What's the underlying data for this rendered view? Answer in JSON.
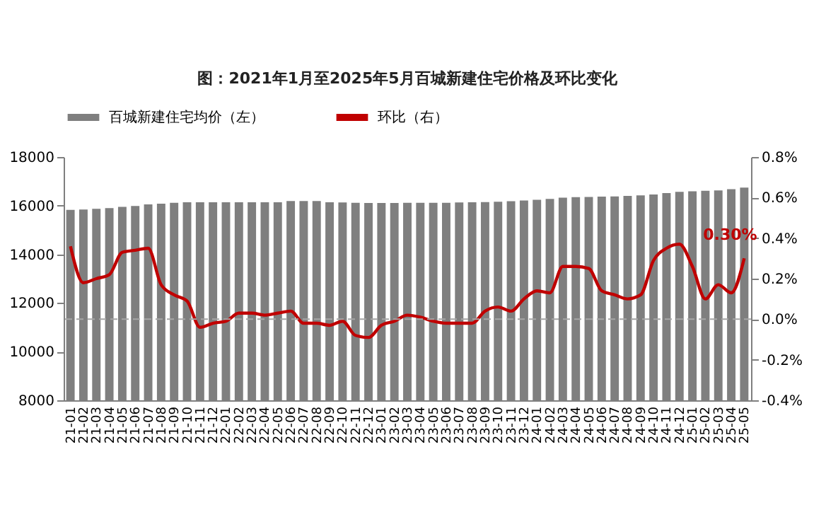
{
  "chart_data": {
    "type": "bar",
    "title": "图：2021年1月至2025年5月百城新建住宅价格及环比变化",
    "categories": [
      "21-01",
      "21-02",
      "21-03",
      "21-04",
      "21-05",
      "21-06",
      "21-07",
      "21-08",
      "21-09",
      "21-10",
      "21-11",
      "21-12",
      "22-01",
      "22-02",
      "22-03",
      "22-04",
      "22-05",
      "22-06",
      "22-07",
      "22-08",
      "22-09",
      "22-10",
      "22-11",
      "22-12",
      "23-01",
      "23-02",
      "23-03",
      "23-04",
      "23-05",
      "23-06",
      "23-07",
      "23-08",
      "23-09",
      "23-10",
      "23-11",
      "23-12",
      "24-01",
      "24-02",
      "24-03",
      "24-04",
      "24-05",
      "24-06",
      "24-07",
      "24-08",
      "24-09",
      "24-10",
      "24-11",
      "24-12",
      "25-01",
      "25-02",
      "25-03",
      "25-04",
      "25-05"
    ],
    "series": [
      {
        "name": "百城新建住宅均价（左）",
        "color": "#7f7f7f",
        "values": [
          15830,
          15840,
          15870,
          15900,
          15950,
          15990,
          16050,
          16080,
          16120,
          16140,
          16140,
          16140,
          16140,
          16140,
          16140,
          16140,
          16140,
          16190,
          16190,
          16190,
          16140,
          16130,
          16120,
          16110,
          16110,
          16110,
          16120,
          16120,
          16120,
          16120,
          16130,
          16140,
          16150,
          16160,
          16180,
          16210,
          16240,
          16280,
          16330,
          16350,
          16360,
          16370,
          16380,
          16400,
          16420,
          16460,
          16520,
          16570,
          16590,
          16610,
          16630,
          16680,
          16740
        ]
      },
      {
        "name": "环比（右）",
        "type": "line",
        "axis": "y2",
        "color": "#c00000",
        "values": [
          0.36,
          0.18,
          0.2,
          0.22,
          0.33,
          0.34,
          0.35,
          0.17,
          0.12,
          0.09,
          -0.04,
          -0.02,
          -0.01,
          0.03,
          0.03,
          0.02,
          0.03,
          0.04,
          -0.02,
          -0.02,
          -0.03,
          -0.01,
          -0.08,
          -0.09,
          -0.03,
          -0.01,
          0.02,
          0.01,
          -0.01,
          -0.02,
          -0.02,
          -0.02,
          0.04,
          0.06,
          0.04,
          0.1,
          0.14,
          0.13,
          0.26,
          0.26,
          0.25,
          0.14,
          0.12,
          0.1,
          0.12,
          0.29,
          0.35,
          0.37,
          0.26,
          0.1,
          0.17,
          0.13,
          0.3
        ],
        "value_labels": [
          null,
          null,
          null,
          null,
          null,
          null,
          null,
          null,
          null,
          null,
          null,
          null,
          null,
          null,
          null,
          null,
          null,
          null,
          null,
          null,
          null,
          null,
          null,
          null,
          null,
          null,
          null,
          null,
          null,
          null,
          null,
          null,
          null,
          null,
          null,
          null,
          null,
          null,
          null,
          null,
          null,
          null,
          null,
          null,
          null,
          null,
          null,
          null,
          null,
          null,
          null,
          null,
          "0.30%"
        ]
      }
    ],
    "ylim": [
      8000,
      18000
    ],
    "yticks": [
      8000,
      10000,
      12000,
      14000,
      16000,
      18000
    ],
    "y2lim": [
      -0.4,
      0.8
    ],
    "y2ticks": [
      {
        "value": -0.4,
        "label": "-0.4%"
      },
      {
        "value": -0.2,
        "label": "-0.2%"
      },
      {
        "value": 0,
        "label": "0.0%"
      },
      {
        "value": 0.2,
        "label": "0.2%"
      },
      {
        "value": 0.4,
        "label": "0.4%"
      },
      {
        "value": 0.6,
        "label": "0.6%"
      },
      {
        "value": 0.8,
        "label": "0.8%"
      }
    ],
    "ref_lines": [
      {
        "axis": "y2",
        "value": 0,
        "color": "#a6a6a6",
        "line_style": "dashed"
      }
    ],
    "legend": "top",
    "grid": false
  }
}
